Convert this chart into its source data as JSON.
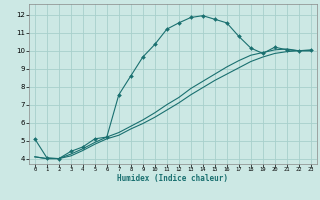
{
  "xlabel": "Humidex (Indice chaleur)",
  "bg_color": "#cce8e4",
  "line_color": "#1a7070",
  "grid_color": "#a8d0cc",
  "xlim": [
    -0.5,
    23.5
  ],
  "ylim": [
    3.7,
    12.6
  ],
  "yticks": [
    4,
    5,
    6,
    7,
    8,
    9,
    10,
    11,
    12
  ],
  "xticks": [
    0,
    1,
    2,
    3,
    4,
    5,
    6,
    7,
    8,
    9,
    10,
    11,
    12,
    13,
    14,
    15,
    16,
    17,
    18,
    19,
    20,
    21,
    22,
    23
  ],
  "curve1_x": [
    0,
    1,
    2,
    3,
    4,
    5,
    6,
    7,
    8,
    9,
    10,
    11,
    12,
    13,
    14,
    15,
    16,
    17,
    18,
    19,
    20,
    21,
    22,
    23
  ],
  "curve1_y": [
    5.1,
    4.05,
    4.0,
    4.4,
    4.65,
    5.1,
    5.2,
    7.55,
    8.6,
    9.65,
    10.35,
    11.2,
    11.55,
    11.85,
    11.95,
    11.75,
    11.55,
    10.8,
    10.15,
    9.85,
    10.2,
    10.05,
    10.0,
    10.05
  ],
  "curve2_x": [
    0,
    1,
    2,
    3,
    4,
    5,
    6,
    7,
    8,
    9,
    10,
    11,
    12,
    13,
    14,
    15,
    16,
    17,
    18,
    19,
    20,
    21,
    22,
    23
  ],
  "curve2_y": [
    4.1,
    4.0,
    4.0,
    4.25,
    4.55,
    4.9,
    5.2,
    5.45,
    5.8,
    6.15,
    6.55,
    7.0,
    7.4,
    7.9,
    8.3,
    8.7,
    9.1,
    9.45,
    9.75,
    9.9,
    10.05,
    10.1,
    10.0,
    10.0
  ],
  "curve3_x": [
    0,
    1,
    2,
    3,
    4,
    5,
    6,
    7,
    8,
    9,
    10,
    11,
    12,
    13,
    14,
    15,
    16,
    17,
    18,
    19,
    20,
    21,
    22,
    23
  ],
  "curve3_y": [
    4.1,
    4.0,
    4.0,
    4.15,
    4.45,
    4.8,
    5.1,
    5.3,
    5.65,
    5.95,
    6.3,
    6.7,
    7.1,
    7.55,
    7.95,
    8.35,
    8.7,
    9.05,
    9.4,
    9.65,
    9.85,
    9.95,
    10.0,
    10.0
  ]
}
